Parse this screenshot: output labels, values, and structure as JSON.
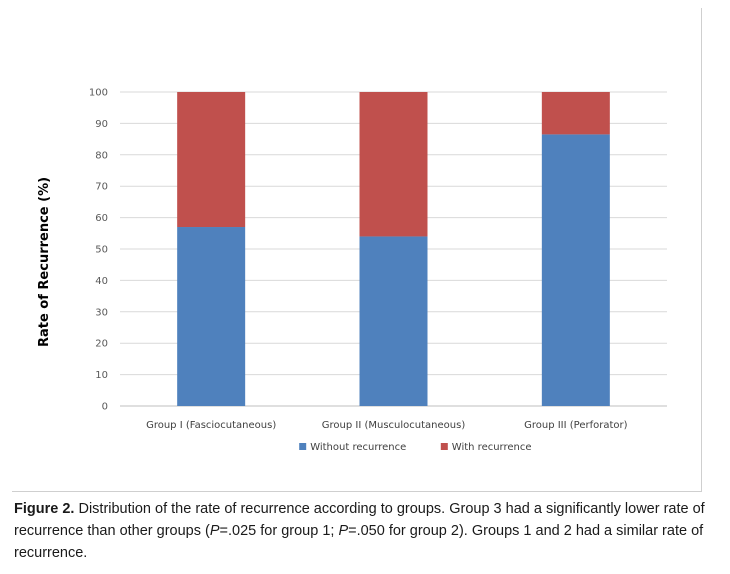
{
  "chart_data": {
    "type": "stacked-bar",
    "ylabel": "Rate of Recurrence (%)",
    "ylim": [
      0,
      100
    ],
    "yticks": [
      0,
      10,
      20,
      30,
      40,
      50,
      60,
      70,
      80,
      90,
      100
    ],
    "categories": [
      "Group I (Fasciocutaneous)",
      "Group II (Musculocutaneous)",
      "Group III (Perforator)"
    ],
    "series": [
      {
        "name": "Without recurrence",
        "color": "#4f81bd",
        "values": [
          57,
          54,
          86.5
        ]
      },
      {
        "name": "With recurrence",
        "color": "#c0504d",
        "values": [
          43,
          46,
          13.5
        ]
      }
    ],
    "legend_position": "bottom",
    "grid": true
  },
  "caption": {
    "label": "Figure 2.",
    "text_1": " Distribution of the rate of recurrence according to groups. Group 3 had a significantly lower rate of recurrence than other groups (",
    "p1_symbol": "P",
    "p1_rest": "=.025 for group 1; ",
    "p2_symbol": "P",
    "p2_rest": "=.050 for group 2). Groups 1 and 2 had a similar rate of recurrence."
  }
}
